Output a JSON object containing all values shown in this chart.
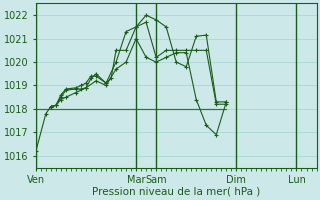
{
  "background_color": "#cce8e8",
  "grid_color": "#99cccc",
  "line_color_dark": "#1a5c1a",
  "line_color_med": "#2d7a2d",
  "xlabel": "Pression niveau de la mer( hPa )",
  "ylim": [
    1015.5,
    1022.5
  ],
  "yticks": [
    1016,
    1017,
    1018,
    1019,
    1020,
    1021,
    1022
  ],
  "xlim": [
    0,
    168
  ],
  "day_labels": [
    "Ven",
    "Mar",
    "Sam",
    "Dim",
    "Lun"
  ],
  "day_x": [
    0,
    60,
    72,
    120,
    156
  ],
  "series1_x": [
    0,
    6,
    9,
    12,
    15,
    18,
    24,
    27,
    30,
    33,
    36,
    42,
    48,
    54,
    60,
    66,
    72,
    78,
    84,
    90,
    96,
    102,
    108,
    114
  ],
  "series1_y": [
    1016.2,
    1017.8,
    1018.1,
    1018.15,
    1018.5,
    1018.8,
    1018.85,
    1018.85,
    1018.9,
    1019.3,
    1019.5,
    1019.1,
    1020.0,
    1021.3,
    1021.5,
    1022.0,
    1021.8,
    1021.5,
    1020.0,
    1019.8,
    1021.1,
    1021.15,
    1018.3,
    1018.3
  ],
  "series2_x": [
    9,
    12,
    15,
    18,
    24,
    27,
    30,
    33,
    36,
    42,
    45,
    48,
    54,
    60,
    66,
    72,
    78,
    84,
    90,
    96,
    102,
    108,
    114
  ],
  "series2_y": [
    1018.1,
    1018.15,
    1018.6,
    1018.85,
    1018.9,
    1019.0,
    1019.1,
    1019.4,
    1019.4,
    1019.1,
    1019.3,
    1020.5,
    1020.5,
    1021.5,
    1021.7,
    1020.2,
    1020.5,
    1020.5,
    1020.5,
    1020.5,
    1020.5,
    1018.2,
    1018.2
  ],
  "series3_x": [
    0,
    114
  ],
  "series3_y": [
    1018.0,
    1018.0
  ],
  "series4_x": [
    9,
    12,
    15,
    18,
    24,
    30,
    36,
    42,
    48,
    54,
    60,
    66,
    72,
    78,
    84,
    90,
    96,
    102,
    108,
    114
  ],
  "series4_y": [
    1018.1,
    1018.15,
    1018.4,
    1018.5,
    1018.7,
    1018.9,
    1019.2,
    1019.0,
    1019.7,
    1020.0,
    1021.0,
    1020.2,
    1020.0,
    1020.2,
    1020.4,
    1020.4,
    1018.4,
    1017.3,
    1016.9,
    1018.3
  ]
}
